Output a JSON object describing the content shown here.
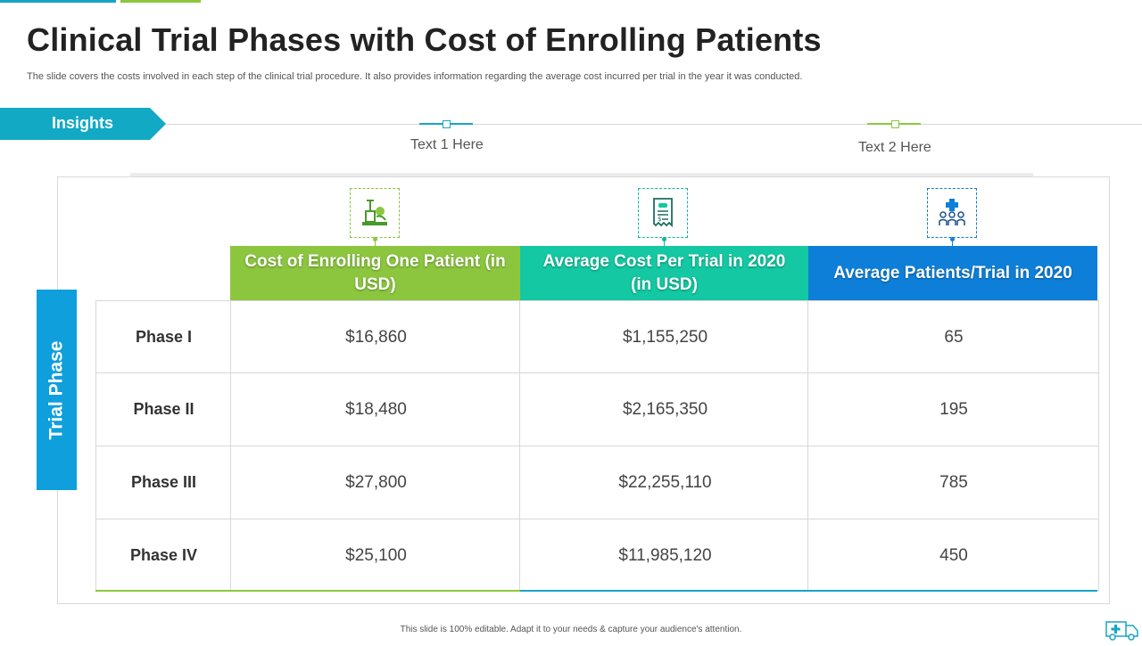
{
  "title": "Clinical Trial Phases with Cost of Enrolling Patients",
  "subtitle": "The slide covers the costs involved in each step of the clinical trial procedure. It also provides information regarding the average cost incurred per trial in the year it was conducted.",
  "insights_label": "Insights",
  "callouts": [
    "Text  1 Here",
    "Text  2 Here"
  ],
  "side_label": "Trial Phase",
  "colors": {
    "green": "#8cc63f",
    "teal": "#13c8a2",
    "blue": "#0e7fd8",
    "cyan": "#12a9c4"
  },
  "icons": [
    "medical-equipment-icon",
    "prescription-document-icon",
    "patients-group-icon"
  ],
  "table": {
    "headers": [
      "Cost of Enrolling One Patient (in USD)",
      "Average Cost Per Trial in 2020 (in USD)",
      "Average Patients/Trial in 2020"
    ],
    "rows": [
      {
        "phase": "Phase I",
        "cost": "$16,860",
        "avg_cost": "$1,155,250",
        "patients": "65"
      },
      {
        "phase": "Phase II",
        "cost": "$18,480",
        "avg_cost": "$2,165,350",
        "patients": "195"
      },
      {
        "phase": "Phase III",
        "cost": "$27,800",
        "avg_cost": "$22,255,110",
        "patients": "785"
      },
      {
        "phase": "Phase IV",
        "cost": "$25,100",
        "avg_cost": "$11,985,120",
        "patients": "450"
      }
    ]
  },
  "footer": "This slide is 100% editable.  Adapt it to your needs & capture your audience's attention."
}
